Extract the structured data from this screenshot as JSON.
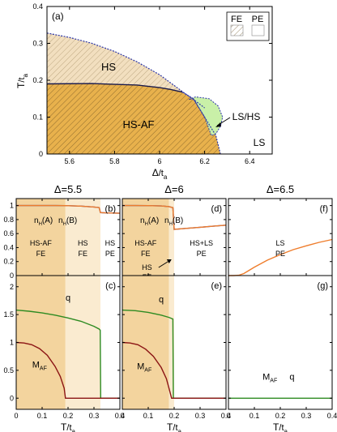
{
  "chart_data": [
    {
      "id": "a",
      "type": "area",
      "panel_label": "(a)",
      "xlabel_main": "Δ",
      "xlabel_sub": "/t",
      "xlabel_subscript": "a",
      "ylabel_main": "T",
      "ylabel_sub": "/t",
      "ylabel_subscript": "a",
      "xlim": [
        5.5,
        6.5
      ],
      "ylim": [
        0,
        0.4
      ],
      "xticks": [
        "5.6",
        "5.8",
        "6",
        "6.2",
        "6.4"
      ],
      "xtick_values": [
        5.6,
        5.8,
        6.0,
        6.2,
        6.4
      ],
      "yticks": [
        "0",
        "0.1",
        "0.2",
        "0.3",
        "0.4"
      ],
      "ytick_values": [
        0,
        0.1,
        0.2,
        0.3,
        0.4
      ],
      "legend": [
        {
          "label": "FE",
          "pattern": "hatched"
        },
        {
          "label": "PE",
          "pattern": "empty"
        }
      ],
      "regions": [
        {
          "label": "HS",
          "color": "#f2dfbf"
        },
        {
          "label": "HS-AF",
          "color": "#e8b14c"
        },
        {
          "label": "LS/HS",
          "color": "#c9f0a8"
        },
        {
          "label": "LS",
          "color": "#ffffff"
        }
      ],
      "boundaries": {
        "hs_pe": {
          "x": [
            5.5,
            5.6,
            5.7,
            5.8,
            5.9,
            6.0,
            6.1,
            6.15,
            6.2
          ],
          "y": [
            0.328,
            0.316,
            0.3,
            0.278,
            0.25,
            0.215,
            0.17,
            0.148,
            0.125
          ]
        },
        "hs_af": {
          "x": [
            5.5,
            5.7,
            5.9,
            6.0,
            6.05,
            6.1
          ],
          "y": [
            0.19,
            0.191,
            0.187,
            0.18,
            0.175,
            0.168
          ]
        },
        "af_lower": {
          "x": [
            6.1,
            6.15,
            6.2,
            6.25,
            6.27
          ],
          "y": [
            0.168,
            0.15,
            0.1,
            0.05,
            0.0
          ]
        },
        "lshs": {
          "x": [
            6.13,
            6.16,
            6.22,
            6.26,
            6.28,
            6.27,
            6.25,
            6.23,
            6.2,
            6.15
          ],
          "y": [
            0.148,
            0.155,
            0.15,
            0.13,
            0.1,
            0.075,
            0.055,
            0.05,
            0.1,
            0.15
          ]
        }
      }
    },
    {
      "id": "b",
      "type": "line",
      "panel_label": "(b)",
      "top_title": "Δ=5.5",
      "xlim": [
        0,
        0.4
      ],
      "ylim": [
        0,
        1.1
      ],
      "yticks": [
        "0",
        "0.2",
        "0.4",
        "0.6",
        "0.8",
        "1"
      ],
      "ytick_values": [
        0,
        0.2,
        0.4,
        0.6,
        0.8,
        1.0
      ],
      "legend_text": [
        {
          "main": "n",
          "sub": "H",
          "tail": "(A)",
          "color": "#2b35a8"
        },
        {
          "main": "n",
          "sub": "H",
          "tail": "(B)",
          "color": "#ef7d2c"
        }
      ],
      "phases": [
        {
          "line1": "HS-AF",
          "line2": "FE",
          "x_range": [
            0,
            0.19
          ],
          "color": "#f3d49e"
        },
        {
          "line1": "HS",
          "line2": "FE",
          "x_range": [
            0.19,
            0.325
          ],
          "color": "#faebd0"
        },
        {
          "line1": "HS",
          "line2": "PE",
          "x_range": [
            0.325,
            0.4
          ],
          "color": "#ffffff"
        }
      ],
      "series": [
        {
          "color": "#2b35a8",
          "x": [
            0,
            0.05,
            0.1,
            0.15,
            0.19,
            0.25,
            0.3,
            0.32,
            0.325,
            0.35,
            0.4
          ],
          "y": [
            1.0,
            1.0,
            1.0,
            1.0,
            0.999,
            0.992,
            0.98,
            0.972,
            0.9,
            0.895,
            0.89
          ]
        },
        {
          "color": "#ef7d2c",
          "x": [
            0,
            0.05,
            0.1,
            0.15,
            0.19,
            0.25,
            0.3,
            0.32,
            0.325,
            0.35,
            0.4
          ],
          "y": [
            1.0,
            1.0,
            1.0,
            1.0,
            0.999,
            0.992,
            0.98,
            0.972,
            0.9,
            0.895,
            0.89
          ]
        }
      ]
    },
    {
      "id": "c",
      "type": "line",
      "panel_label": "(c)",
      "xlabel_main": "T",
      "xlabel_sub": "/t",
      "xlabel_subscript": "a",
      "xlim": [
        0,
        0.4
      ],
      "ylim": [
        -0.2,
        2.2
      ],
      "xticks": [
        "0",
        "0.1",
        "0.2",
        "0.3",
        "0.4"
      ],
      "xtick_values": [
        0,
        0.1,
        0.2,
        0.3,
        0.4
      ],
      "yticks": [
        "0",
        "0.5",
        "1",
        "1.5",
        "2"
      ],
      "ytick_values": [
        0,
        0.5,
        1.0,
        1.5,
        2.0
      ],
      "phase_bounds": [
        0.19,
        0.325
      ],
      "series": [
        {
          "name": "q",
          "color": "#2e8b22",
          "x": [
            0,
            0.05,
            0.1,
            0.15,
            0.2,
            0.25,
            0.3,
            0.32,
            0.324,
            0.326,
            0.35,
            0.4
          ],
          "y": [
            1.58,
            1.56,
            1.53,
            1.49,
            1.44,
            1.38,
            1.29,
            1.24,
            1.22,
            0.0,
            0.0,
            0.0
          ]
        },
        {
          "name": "M",
          "name_sub": "AF",
          "color": "#8b1414",
          "x": [
            0,
            0.03,
            0.06,
            0.09,
            0.12,
            0.15,
            0.17,
            0.185,
            0.19,
            0.4
          ],
          "y": [
            1.0,
            0.99,
            0.96,
            0.89,
            0.77,
            0.57,
            0.39,
            0.18,
            0.0,
            0.0
          ]
        }
      ]
    },
    {
      "id": "d",
      "type": "line",
      "panel_label": "(d)",
      "top_title": "Δ=6",
      "xlim": [
        0,
        0.4
      ],
      "ylim": [
        0,
        1.1
      ],
      "legend_text": [
        {
          "main": "n",
          "sub": "H",
          "tail": "(A)",
          "color": "#2b35a8"
        },
        {
          "main": "n",
          "sub": "H",
          "tail": "(B)",
          "color": "#ef7d2c"
        }
      ],
      "phases": [
        {
          "line1": "HS-AF",
          "line2": "FE",
          "x_range": [
            0,
            0.18
          ],
          "color": "#f3d49e"
        },
        {
          "line1": "HS",
          "line2": "FE",
          "x_range": [
            0.18,
            0.2
          ],
          "color": "#faebd0"
        },
        {
          "line1": "HS+LS",
          "line2": "PE",
          "x_range": [
            0.2,
            0.4
          ],
          "color": "#ffffff"
        }
      ],
      "series": [
        {
          "color": "#2b35a8",
          "x": [
            0,
            0.05,
            0.1,
            0.15,
            0.18,
            0.195,
            0.2,
            0.25,
            0.3,
            0.35,
            0.4
          ],
          "y": [
            1.0,
            1.0,
            0.999,
            0.995,
            0.985,
            0.97,
            0.66,
            0.675,
            0.69,
            0.705,
            0.72
          ]
        },
        {
          "color": "#ef7d2c",
          "x": [
            0,
            0.05,
            0.1,
            0.15,
            0.18,
            0.195,
            0.2,
            0.25,
            0.3,
            0.35,
            0.4
          ],
          "y": [
            1.0,
            1.0,
            0.999,
            0.995,
            0.985,
            0.97,
            0.66,
            0.675,
            0.69,
            0.705,
            0.72
          ]
        }
      ]
    },
    {
      "id": "e",
      "type": "line",
      "panel_label": "(e)",
      "xlabel_main": "T",
      "xlabel_sub": "/t",
      "xlabel_subscript": "a",
      "xlim": [
        0,
        0.4
      ],
      "ylim": [
        -0.2,
        2.2
      ],
      "xticks": [
        "0",
        "0.1",
        "0.2",
        "0.3",
        "0.4"
      ],
      "xtick_values": [
        0,
        0.1,
        0.2,
        0.3,
        0.4
      ],
      "phase_bounds": [
        0.18,
        0.2
      ],
      "series": [
        {
          "name": "q",
          "color": "#2e8b22",
          "x": [
            0,
            0.05,
            0.1,
            0.15,
            0.18,
            0.195,
            0.197,
            0.2,
            0.4
          ],
          "y": [
            1.58,
            1.57,
            1.54,
            1.49,
            1.45,
            1.42,
            0.0,
            0.0,
            0.0
          ]
        },
        {
          "name": "M",
          "name_sub": "AF",
          "color": "#8b1414",
          "x": [
            0,
            0.03,
            0.06,
            0.09,
            0.12,
            0.15,
            0.17,
            0.18,
            0.19,
            0.4
          ],
          "y": [
            1.0,
            0.99,
            0.96,
            0.88,
            0.75,
            0.55,
            0.35,
            0.18,
            0.0,
            0.0
          ]
        }
      ]
    },
    {
      "id": "f",
      "type": "line",
      "panel_label": "(f)",
      "top_title": "Δ=6.5",
      "xlim": [
        0,
        0.4
      ],
      "ylim": [
        0,
        1.1
      ],
      "phases": [
        {
          "line1": "LS",
          "line2": "PE",
          "x_range": [
            0,
            0.4
          ],
          "color": "#ffffff"
        }
      ],
      "series": [
        {
          "color": "#ef7d2c",
          "x": [
            0,
            0.02,
            0.04,
            0.06,
            0.08,
            0.1,
            0.15,
            0.2,
            0.25,
            0.3,
            0.35,
            0.4
          ],
          "y": [
            0.0,
            0.0,
            0.005,
            0.03,
            0.075,
            0.12,
            0.22,
            0.3,
            0.37,
            0.425,
            0.475,
            0.515
          ]
        }
      ]
    },
    {
      "id": "g",
      "type": "line",
      "panel_label": "(g)",
      "xlabel_main": "T",
      "xlabel_sub": "/t",
      "xlabel_subscript": "a",
      "xlim": [
        0,
        0.4
      ],
      "ylim": [
        -0.2,
        2.2
      ],
      "xticks": [
        "0",
        "0.1",
        "0.2",
        "0.3",
        "0.4"
      ],
      "xtick_values": [
        0,
        0.1,
        0.2,
        0.3,
        0.4
      ],
      "series_labels": [
        {
          "main": "M",
          "sub": "AF",
          "color": "#8b1414"
        },
        {
          "main": "q",
          "sub": "",
          "color": "#2e8b22"
        }
      ],
      "series": [
        {
          "color": "#2e8b22",
          "x": [
            0,
            0.4
          ],
          "y": [
            0.0,
            0.0
          ]
        }
      ]
    }
  ]
}
